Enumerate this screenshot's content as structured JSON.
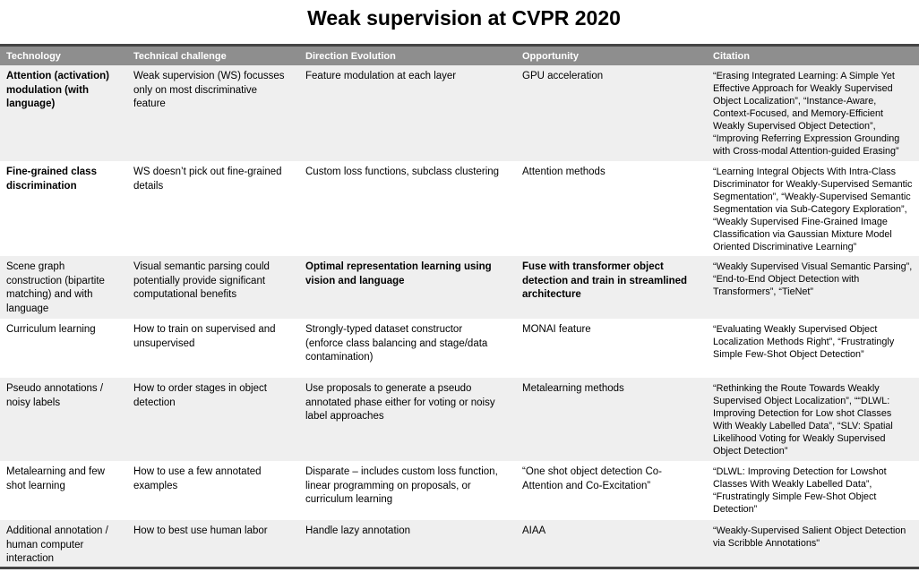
{
  "title": "Weak supervision at CVPR 2020",
  "headers": [
    "Technology",
    "Technical challenge",
    "Direction Evolution",
    "Opportunity",
    "Citation"
  ],
  "rows": [
    {
      "technology": "Attention (activation)\nmodulation (with\nlanguage)",
      "challenge": "Weak supervision (WS) focusses\nonly on most discriminative\nfeature",
      "direction": "Feature modulation at each layer",
      "opportunity": "GPU acceleration",
      "citation": "“Erasing Integrated Learning: A Simple Yet\nEffective Approach for Weakly Supervised\nObject Localization”, “Instance-Aware,\nContext-Focused, and Memory-Efficient\nWeakly Supervised Object Detection”,\n“Improving Referring Expression Grounding\nwith Cross-modal Attention-guided Erasing”"
    },
    {
      "technology": "Fine-grained class\ndiscrimination",
      "challenge": "WS doesn’t pick out fine-grained\ndetails",
      "direction": "Custom loss functions, subclass clustering",
      "opportunity": "Attention methods",
      "citation": "“Learning Integral Objects With Intra-Class\nDiscriminator for Weakly-Supervised Semantic\nSegmentation”, “Weakly-Supervised Semantic\nSegmentation via Sub-Category Exploration”,\n“Weakly Supervised Fine-Grained Image\nClassification via Gaussian Mixture Model\nOriented Discriminative Learning”"
    },
    {
      "technology": "Scene graph\nconstruction (bipartite\nmatching) and with\nlanguage",
      "challenge": "Visual semantic parsing could\npotentially provide significant\ncomputational benefits",
      "direction": "Optimal representation learning using\nvision and language",
      "opportunity": "Fuse with transformer object\ndetection and train in streamlined\narchitecture",
      "citation": "“Weakly Supervised Visual Semantic Parsing”,\n“End-to-End Object Detection with\nTransformers”, “TieNet”"
    },
    {
      "technology": "Curriculum learning",
      "challenge": "How to train on supervised and\nunsupervised",
      "direction": "Strongly-typed dataset constructor\n(enforce class balancing and stage/data\ncontamination)",
      "opportunity": "MONAI feature",
      "citation": "“Evaluating Weakly Supervised Object\nLocalization Methods Right”, “Frustratingly\nSimple Few-Shot Object Detection”"
    },
    {
      "technology": "Pseudo annotations /\nnoisy labels",
      "challenge": "How to order stages in object\ndetection",
      "direction": "Use proposals to generate a pseudo\nannotated phase either for voting or noisy\nlabel approaches",
      "opportunity": "Metalearning methods",
      "citation": "“Rethinking the Route Towards Weakly\nSupervised Object Localization”, ““DLWL:\nImproving Detection for Low shot Classes\nWith Weakly Labelled Data”, “SLV: Spatial\nLikelihood Voting for Weakly Supervised\nObject Detection”"
    },
    {
      "technology": "Metalearning and few\nshot learning",
      "challenge": "How to use a few annotated\nexamples",
      "direction": "Disparate – includes custom loss function,\nlinear programming on proposals, or\ncurriculum learning",
      "opportunity": "“One shot object detection Co-\nAttention and Co-Excitation”",
      "citation": "“DLWL: Improving Detection for Lowshot\nClasses With Weakly Labelled Data”,\n“Frustratingly Simple Few-Shot Object\nDetection”"
    },
    {
      "technology": "Additional annotation /\nhuman computer\ninteraction",
      "challenge": "How to best use human labor",
      "direction": "Handle lazy annotation",
      "opportunity": "AIAA",
      "citation": "“Weakly-Supervised Salient Object Detection\nvia Scribble Annotations\""
    }
  ]
}
